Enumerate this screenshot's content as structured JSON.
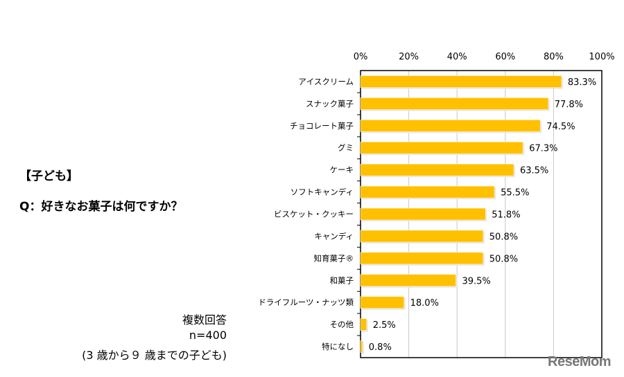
{
  "heading": "【子ども】",
  "question": "Q：好きなお菓子は何ですか？",
  "notes": [
    "複数回答",
    "n=400",
    "(3 歳から９ 歳までの子ども)"
  ],
  "watermark": "ReseMom",
  "chart_data": {
    "type": "bar",
    "orientation": "horizontal",
    "categories": [
      "アイスクリーム",
      "スナック菓子",
      "チョコレート菓子",
      "グミ",
      "ケーキ",
      "ソフトキャンディ",
      "ビスケット・クッキー",
      "キャンディ",
      "知育菓子®",
      "和菓子",
      "ドライフルーツ・ナッツ類",
      "その他",
      "特になし"
    ],
    "values": [
      83.3,
      77.8,
      74.5,
      67.3,
      63.5,
      55.5,
      51.8,
      50.8,
      50.8,
      39.5,
      18.0,
      2.5,
      0.8
    ],
    "data_labels": [
      "83.3%",
      "77.8%",
      "74.5%",
      "67.3%",
      "63.5%",
      "55.5%",
      "51.8%",
      "50.8%",
      "50.8%",
      "39.5%",
      "18.0%",
      "2.5%",
      "0.8%"
    ],
    "xlim": [
      0,
      100
    ],
    "xticks": [
      "0%",
      "20%",
      "40%",
      "60%",
      "80%",
      "100%"
    ],
    "grid": true,
    "bar_color": "#FFC000"
  }
}
